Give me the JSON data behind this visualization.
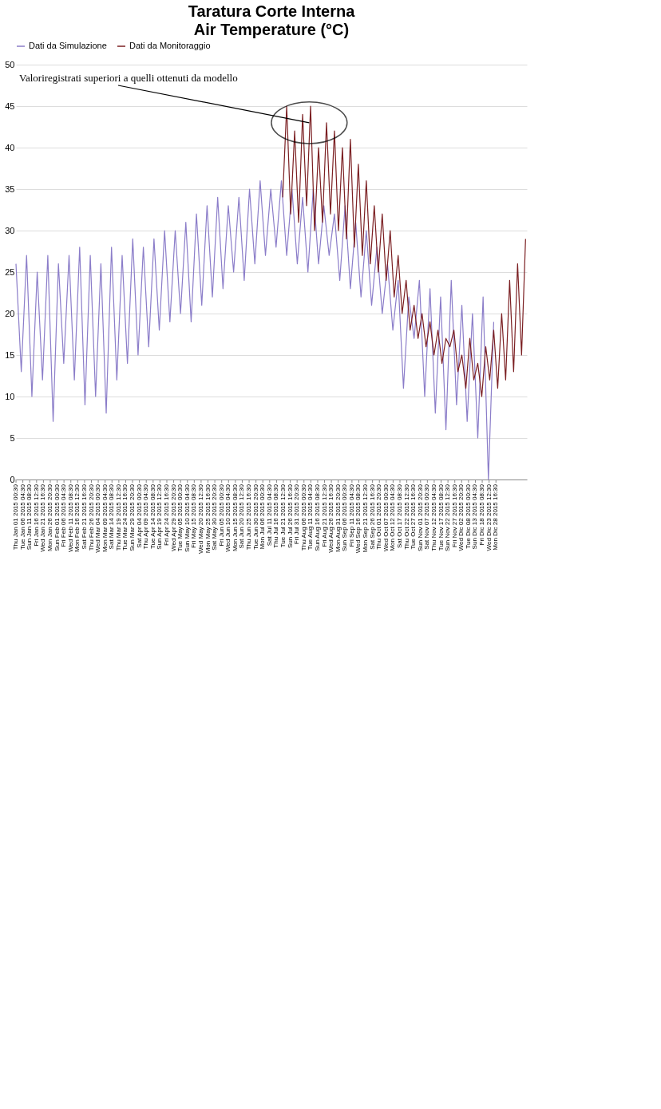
{
  "chart_data": {
    "type": "line",
    "title": "Taratura Corte Interna",
    "subtitle": "Air Temperature (°C)",
    "xlim": [
      "2015-01-01",
      "2016-01-21"
    ],
    "xticks": [
      {
        "value": "2015-01-01T00:30",
        "label": "Thu Jan 01 2015 00:30"
      },
      {
        "value": "2015-01-06T04:30",
        "label": "Tue Jan 06 2015 04:30"
      },
      {
        "value": "2015-01-11T08:30",
        "label": "Sun Jan 11 2015 08:30"
      },
      {
        "value": "2015-01-16T12:30",
        "label": "Fri Jan 16 2015 12:30"
      },
      {
        "value": "2015-01-21T16:30",
        "label": "Wed Jan 21 2015 16:30"
      },
      {
        "value": "2015-01-26T20:30",
        "label": "Mon Jan 26 2015 20:30"
      },
      {
        "value": "2015-02-01T00:30",
        "label": "Sun Feb 01 2015 00:30"
      },
      {
        "value": "2015-02-06T04:30",
        "label": "Fri Feb 06 2015 04:30"
      },
      {
        "value": "2015-02-11T08:30",
        "label": "Wed Feb 11 2015 08:30"
      },
      {
        "value": "2015-02-16T12:30",
        "label": "Mon Feb 16 2015 12:30"
      },
      {
        "value": "2015-02-21T16:30",
        "label": "Sat Feb 21 2015 16:30"
      },
      {
        "value": "2015-02-26T20:30",
        "label": "Thu Feb 26 2015 20:30"
      },
      {
        "value": "2015-03-04T00:30",
        "label": "Wed Mar 04 2015 00:30"
      },
      {
        "value": "2015-03-09T04:30",
        "label": "Mon Mar 09 2015 04:30"
      },
      {
        "value": "2015-03-14T08:30",
        "label": "Sat Mar 14 2015 08:30"
      },
      {
        "value": "2015-03-19T12:30",
        "label": "Thu Mar 19 2015 12:30"
      },
      {
        "value": "2015-03-24T16:30",
        "label": "Tue Mar 24 2015 16:30"
      },
      {
        "value": "2015-03-29T20:30",
        "label": "Sun Mar 29 2015 20:30"
      },
      {
        "value": "2015-04-04T00:30",
        "label": "Sat Apr 04 2015 00:30"
      },
      {
        "value": "2015-04-09T04:30",
        "label": "Thu Apr 09 2015 04:30"
      },
      {
        "value": "2015-04-14T08:30",
        "label": "Tue Apr 14 2015 08:30"
      },
      {
        "value": "2015-04-19T12:30",
        "label": "Sun Apr 19 2015 12:30"
      },
      {
        "value": "2015-04-24T16:30",
        "label": "Fri Apr 24 2015 16:30"
      },
      {
        "value": "2015-04-29T20:30",
        "label": "Wed Apr 29 2015 20:30"
      },
      {
        "value": "2015-05-05T00:30",
        "label": "Tue May 05 2015 00:30"
      },
      {
        "value": "2015-05-10T04:30",
        "label": "Sun May 10 2015 04:30"
      },
      {
        "value": "2015-05-15T08:30",
        "label": "Fri May 15 2015 08:30"
      },
      {
        "value": "2015-05-20T12:30",
        "label": "Wed May 20 2015 12:30"
      },
      {
        "value": "2015-05-25T16:30",
        "label": "Mon May 25 2015 16:30"
      },
      {
        "value": "2015-05-30T20:30",
        "label": "Sat May 30 2015 20:30"
      },
      {
        "value": "2015-06-05T00:30",
        "label": "Fri Jun 05 2015 00:30"
      },
      {
        "value": "2015-06-10T04:30",
        "label": "Wed Jun 10 2015 04:30"
      },
      {
        "value": "2015-06-15T08:30",
        "label": "Mon Jun 15 2015 08:30"
      },
      {
        "value": "2015-06-20T12:30",
        "label": "Sat Jun 20 2015 12:30"
      },
      {
        "value": "2015-06-25T16:30",
        "label": "Thu Jun 25 2015 16:30"
      },
      {
        "value": "2015-06-30T20:30",
        "label": "Tue Jun 30 2015 20:30"
      },
      {
        "value": "2015-07-06T00:30",
        "label": "Mon Jul 06 2015 00:30"
      },
      {
        "value": "2015-07-11T04:30",
        "label": "Sat Jul 11 2015 04:30"
      },
      {
        "value": "2015-07-16T08:30",
        "label": "Thu Jul 16 2015 08:30"
      },
      {
        "value": "2015-07-21T12:30",
        "label": "Tue Jul 21 2015 12:30"
      },
      {
        "value": "2015-07-26T16:30",
        "label": "Sun Jul 26 2015 16:30"
      },
      {
        "value": "2015-07-31T20:30",
        "label": "Fri Jul 31 2015 20:30"
      },
      {
        "value": "2015-08-06T00:30",
        "label": "Thu Aug 06 2015 00:30"
      },
      {
        "value": "2015-08-11T04:30",
        "label": "Tue Aug 11 2015 04:30"
      },
      {
        "value": "2015-08-16T08:30",
        "label": "Sun Aug 16 2015 08:30"
      },
      {
        "value": "2015-08-21T12:30",
        "label": "Fri Aug 21 2015 12:30"
      },
      {
        "value": "2015-08-26T16:30",
        "label": "Wed Aug 26 2015 16:30"
      },
      {
        "value": "2015-08-31T20:30",
        "label": "Mon Aug 31 2015 20:30"
      },
      {
        "value": "2015-09-06T00:30",
        "label": "Sun Sep 06 2015 00:30"
      },
      {
        "value": "2015-09-11T04:30",
        "label": "Fri Sep 11 2015 04:30"
      },
      {
        "value": "2015-09-16T08:30",
        "label": "Wed Sep 16 2015 08:30"
      },
      {
        "value": "2015-09-21T12:30",
        "label": "Mon Sep 21 2015 12:30"
      },
      {
        "value": "2015-09-26T16:30",
        "label": "Sat Sep 26 2015 16:30"
      },
      {
        "value": "2015-10-01T20:30",
        "label": "Thu Oct 01 2015 20:30"
      },
      {
        "value": "2015-10-07T00:30",
        "label": "Wed Oct 07 2015 00:30"
      },
      {
        "value": "2015-10-12T04:30",
        "label": "Mon Oct 12 2015 04:30"
      },
      {
        "value": "2015-10-17T08:30",
        "label": "Sat Oct 17 2015 08:30"
      },
      {
        "value": "2015-10-22T12:30",
        "label": "Thu Oct 22 2015 12:30"
      },
      {
        "value": "2015-10-27T16:30",
        "label": "Tue Oct 27 2015 16:30"
      },
      {
        "value": "2015-11-01T20:30",
        "label": "Sun Nov 01 2015 20:30"
      },
      {
        "value": "2015-11-07T00:30",
        "label": "Sat Nov 07 2015 00:30"
      },
      {
        "value": "2015-11-12T04:30",
        "label": "Thu Nov 12 2015 04:30"
      },
      {
        "value": "2015-11-17T08:30",
        "label": "Tue Nov 17 2015 08:30"
      },
      {
        "value": "2015-11-22T12:30",
        "label": "Sun Nov 22 2015 12:30"
      },
      {
        "value": "2015-11-27T16:30",
        "label": "Fri Nov 27 2015 16:30"
      },
      {
        "value": "2015-12-02T20:30",
        "label": "Wed Dic 02 2015 20:30"
      },
      {
        "value": "2015-12-08T00:30",
        "label": "Tue Dic 08 2015 00:30"
      },
      {
        "value": "2015-12-13T04:30",
        "label": "Sun Dic 13 2015 04:30"
      },
      {
        "value": "2015-12-18T08:30",
        "label": "Fri Dic 18 2015 08:30"
      },
      {
        "value": "2015-12-23T12:30",
        "label": "Wed Dic 23 2015 12:30"
      },
      {
        "value": "2015-12-28T16:30",
        "label": "Mon Dic 28 2015 16:30"
      }
    ],
    "ylim": [
      0,
      50
    ],
    "yticks": [
      0,
      5,
      10,
      15,
      20,
      25,
      30,
      35,
      40,
      45,
      50
    ],
    "grid": "y",
    "legend": "top",
    "line_style": "solid",
    "series": [
      {
        "name": "Dati da Simulazione",
        "color": "#8b7dc9",
        "x": [
          "2015-01-01",
          "2015-01-05",
          "2015-01-09",
          "2015-01-13",
          "2015-01-17",
          "2015-01-21",
          "2015-01-25",
          "2015-01-29",
          "2015-02-02",
          "2015-02-06",
          "2015-02-10",
          "2015-02-14",
          "2015-02-18",
          "2015-02-22",
          "2015-02-26",
          "2015-03-02",
          "2015-03-06",
          "2015-03-10",
          "2015-03-14",
          "2015-03-18",
          "2015-03-22",
          "2015-03-26",
          "2015-03-30",
          "2015-04-03",
          "2015-04-07",
          "2015-04-11",
          "2015-04-15",
          "2015-04-19",
          "2015-04-23",
          "2015-04-27",
          "2015-05-01",
          "2015-05-05",
          "2015-05-09",
          "2015-05-13",
          "2015-05-17",
          "2015-05-21",
          "2015-05-25",
          "2015-05-29",
          "2015-06-02",
          "2015-06-06",
          "2015-06-10",
          "2015-06-14",
          "2015-06-18",
          "2015-06-22",
          "2015-06-26",
          "2015-06-30",
          "2015-07-04",
          "2015-07-08",
          "2015-07-12",
          "2015-07-16",
          "2015-07-20",
          "2015-07-24",
          "2015-07-28",
          "2015-08-01",
          "2015-08-05",
          "2015-08-09",
          "2015-08-13",
          "2015-08-17",
          "2015-08-21",
          "2015-08-25",
          "2015-08-29",
          "2015-09-02",
          "2015-09-06",
          "2015-09-10",
          "2015-09-14",
          "2015-09-18",
          "2015-09-22",
          "2015-09-26",
          "2015-09-30",
          "2015-10-04",
          "2015-10-08",
          "2015-10-12",
          "2015-10-16",
          "2015-10-20",
          "2015-10-24",
          "2015-10-28",
          "2015-11-01",
          "2015-11-05",
          "2015-11-09",
          "2015-11-13",
          "2015-11-17",
          "2015-11-21",
          "2015-11-25",
          "2015-11-29",
          "2015-12-03",
          "2015-12-07",
          "2015-12-11",
          "2015-12-15",
          "2015-12-19",
          "2015-12-23",
          "2015-12-27"
        ],
        "values": [
          26,
          13,
          27,
          10,
          25,
          12,
          27,
          7,
          26,
          14,
          27,
          12,
          28,
          9,
          27,
          10,
          26,
          8,
          28,
          12,
          27,
          14,
          29,
          15,
          28,
          16,
          29,
          18,
          30,
          19,
          30,
          20,
          31,
          19,
          32,
          21,
          33,
          22,
          34,
          23,
          33,
          25,
          34,
          24,
          35,
          26,
          36,
          27,
          35,
          28,
          36,
          27,
          35,
          26,
          34,
          25,
          35,
          26,
          33,
          27,
          32,
          24,
          33,
          23,
          31,
          22,
          30,
          21,
          28,
          20,
          26,
          18,
          24,
          11,
          22,
          17,
          24,
          10,
          23,
          8,
          22,
          6,
          24,
          9,
          21,
          7,
          20,
          5,
          22,
          0,
          19
        ]
      },
      {
        "name": "Dati da Monitoraggio",
        "color": "#7b1f22",
        "x": [
          "2015-07-21",
          "2015-07-24",
          "2015-07-27",
          "2015-07-30",
          "2015-08-02",
          "2015-08-05",
          "2015-08-08",
          "2015-08-11",
          "2015-08-14",
          "2015-08-17",
          "2015-08-20",
          "2015-08-23",
          "2015-08-26",
          "2015-08-29",
          "2015-09-01",
          "2015-09-04",
          "2015-09-07",
          "2015-09-10",
          "2015-09-13",
          "2015-09-16",
          "2015-09-19",
          "2015-09-22",
          "2015-09-25",
          "2015-09-28",
          "2015-10-01",
          "2015-10-04",
          "2015-10-07",
          "2015-10-10",
          "2015-10-13",
          "2015-10-16",
          "2015-10-19",
          "2015-10-22",
          "2015-10-25",
          "2015-10-28",
          "2015-10-31",
          "2015-11-03",
          "2015-11-06",
          "2015-11-09",
          "2015-11-12",
          "2015-11-15",
          "2015-11-18",
          "2015-11-21",
          "2015-11-24",
          "2015-11-27",
          "2015-11-30",
          "2015-12-03",
          "2015-12-06",
          "2015-12-09",
          "2015-12-12",
          "2015-12-15",
          "2015-12-18",
          "2015-12-21",
          "2015-12-24",
          "2015-12-27",
          "2015-12-30",
          "2016-01-02",
          "2016-01-05",
          "2016-01-08",
          "2016-01-11",
          "2016-01-14",
          "2016-01-17",
          "2016-01-20"
        ],
        "values": [
          34,
          45,
          32,
          42,
          31,
          44,
          33,
          45,
          30,
          40,
          31,
          43,
          32,
          42,
          30,
          40,
          29,
          41,
          28,
          38,
          27,
          36,
          26,
          33,
          25,
          32,
          24,
          30,
          22,
          27,
          20,
          24,
          18,
          21,
          17,
          20,
          16,
          19,
          15,
          18,
          14,
          17,
          16,
          18,
          13,
          15,
          11,
          17,
          12,
          14,
          10,
          16,
          12,
          18,
          11,
          20,
          12,
          24,
          13,
          26,
          15,
          29
        ]
      }
    ],
    "annotations": [
      {
        "text": "Valoriregistrati superiori a quelli ottenuti da modello",
        "x": "2015-08-10",
        "y": 43
      }
    ]
  }
}
